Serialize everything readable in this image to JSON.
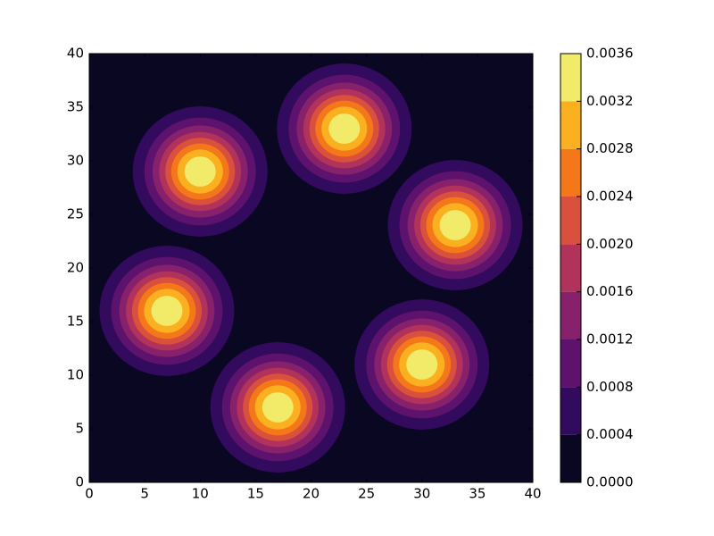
{
  "chart_data": {
    "type": "contour",
    "xlim": [
      0,
      40
    ],
    "ylim": [
      0,
      40
    ],
    "xticks": [
      0,
      5,
      10,
      15,
      20,
      25,
      30,
      35,
      40
    ],
    "yticks": [
      0,
      5,
      10,
      15,
      20,
      25,
      30,
      35,
      40
    ],
    "peaks": [
      {
        "x": 10,
        "y": 29,
        "value": 0.0036,
        "sigma": 2.9
      },
      {
        "x": 23,
        "y": 33,
        "value": 0.0036,
        "sigma": 2.9
      },
      {
        "x": 33,
        "y": 24,
        "value": 0.0036,
        "sigma": 2.9
      },
      {
        "x": 7,
        "y": 16,
        "value": 0.0036,
        "sigma": 2.9
      },
      {
        "x": 17,
        "y": 7,
        "value": 0.0036,
        "sigma": 2.9
      },
      {
        "x": 30,
        "y": 11,
        "value": 0.0036,
        "sigma": 2.9
      }
    ],
    "levels": [
      {
        "value": 0,
        "label": "0.0000"
      },
      0.0004,
      0.0008,
      0.0012,
      0.0016,
      {
        "value": 0.002,
        "label": "0.0020"
      },
      0.0024,
      0.0028,
      0.0032,
      0.0036
    ],
    "colors": [
      "#0a0722",
      "#320a5e",
      "#5d126e",
      "#87216b",
      "#b1325a",
      "#d9503c",
      "#f4781a",
      "#fbb020",
      "#f2eb6a"
    ]
  }
}
